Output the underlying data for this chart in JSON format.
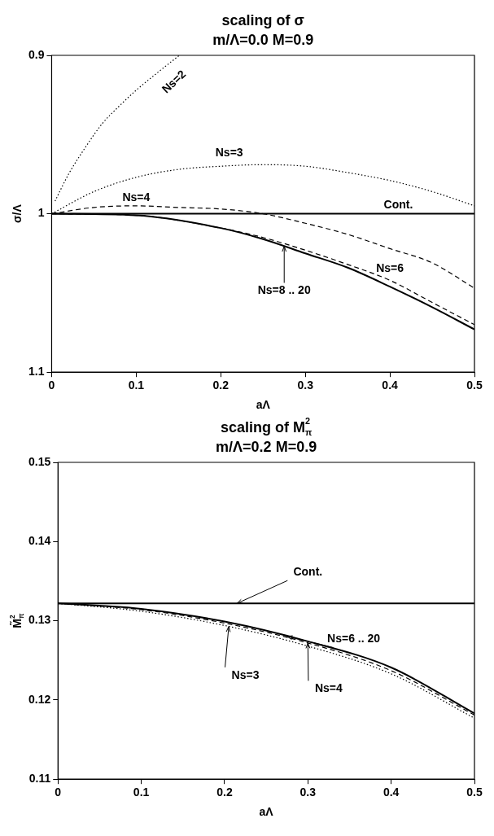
{
  "chart_data": [
    {
      "type": "line",
      "title": "scaling of σ",
      "subtitle": "m/Λ=0.0 M=0.9",
      "xlabel": "aΛ",
      "ylabel": "σ/Λ",
      "xlim": [
        0,
        0.5
      ],
      "xticks": [
        0,
        0.1,
        0.2,
        0.3,
        0.4,
        0.5
      ],
      "ylim": [
        1.1,
        0.9
      ],
      "yticks": [
        0.9,
        1,
        1.1
      ],
      "grid": false,
      "legend": false,
      "marker": "none",
      "series": [
        {
          "name": "Ns=2",
          "color": "#000000",
          "line_style": "dotted",
          "x": [
            0.004,
            0.02,
            0.04,
            0.06,
            0.08,
            0.1,
            0.125,
            0.151
          ],
          "values": [
            0.992,
            0.975,
            0.958,
            0.943,
            0.932,
            0.922,
            0.911,
            0.9
          ]
        },
        {
          "name": "Ns=3",
          "color": "#000000",
          "line_style": "dotted",
          "x": [
            0,
            0.05,
            0.1,
            0.15,
            0.2,
            0.25,
            0.3,
            0.35,
            0.4,
            0.45,
            0.5
          ],
          "values": [
            1,
            0.986,
            0.977,
            0.972,
            0.97,
            0.969,
            0.97,
            0.974,
            0.979,
            0.986,
            0.995
          ]
        },
        {
          "name": "Ns=4",
          "color": "#000000",
          "line_style": "dashed",
          "x": [
            0,
            0.05,
            0.1,
            0.15,
            0.2,
            0.25,
            0.3,
            0.35,
            0.4,
            0.45,
            0.5
          ],
          "values": [
            1,
            0.996,
            0.995,
            0.996,
            0.997,
            1,
            1.006,
            1.013,
            1.022,
            1.031,
            1.047
          ]
        },
        {
          "name": "Cont.",
          "color": "#000000",
          "line_style": "solid",
          "x": [
            0,
            0.5
          ],
          "values": [
            1,
            1
          ]
        },
        {
          "name": "Ns=6",
          "color": "#000000",
          "line_style": "dashed",
          "x": [
            0,
            0.1,
            0.2,
            0.25,
            0.3,
            0.35,
            0.4,
            0.45,
            0.5
          ],
          "values": [
            1,
            1.001,
            1.009,
            1.015,
            1.023,
            1.032,
            1.042,
            1.056,
            1.07
          ]
        },
        {
          "name": "Ns=8 .. 20",
          "color": "#000000",
          "line_style": "solid",
          "x": [
            0,
            0.1,
            0.2,
            0.25,
            0.3,
            0.35,
            0.4,
            0.45,
            0.5
          ],
          "values": [
            1,
            1.001,
            1.009,
            1.016,
            1.025,
            1.034,
            1.046,
            1.059,
            1.073
          ]
        }
      ]
    },
    {
      "type": "line",
      "title": "scaling of M$_{π}$$^{2}$",
      "subtitle": "m/Λ=0.2 M=0.9",
      "xlabel": "aΛ",
      "ylabel": "M̃$_{π}$$^{2}$",
      "xlim": [
        0,
        0.5
      ],
      "xticks": [
        0,
        0.1,
        0.2,
        0.3,
        0.4,
        0.5
      ],
      "ylim": [
        0.11,
        0.15
      ],
      "yticks": [
        0.11,
        0.12,
        0.13,
        0.14,
        0.15
      ],
      "grid": false,
      "legend": false,
      "marker": "none",
      "series": [
        {
          "name": "Cont.",
          "color": "#000000",
          "line_style": "solid",
          "x": [
            0,
            0.5
          ],
          "values": [
            0.1322,
            0.1322
          ]
        },
        {
          "name": "Ns=6 .. 20",
          "color": "#000000",
          "line_style": "solid",
          "x": [
            0,
            0.05,
            0.1,
            0.2,
            0.3,
            0.4,
            0.5
          ],
          "values": [
            0.1322,
            0.1319,
            0.1315,
            0.1299,
            0.1274,
            0.1241,
            0.1183
          ]
        },
        {
          "name": "Ns=3",
          "color": "#000000",
          "line_style": "dotted",
          "x": [
            0,
            0.1,
            0.2,
            0.3,
            0.4,
            0.5
          ],
          "values": [
            0.1322,
            0.1312,
            0.1294,
            0.1268,
            0.1233,
            0.1177
          ]
        },
        {
          "name": "Ns=4",
          "color": "#000000",
          "line_style": "dashed",
          "x": [
            0,
            0.1,
            0.2,
            0.3,
            0.4,
            0.5
          ],
          "values": [
            0.1322,
            0.1314,
            0.1297,
            0.1272,
            0.1237,
            0.1181
          ]
        }
      ]
    }
  ]
}
